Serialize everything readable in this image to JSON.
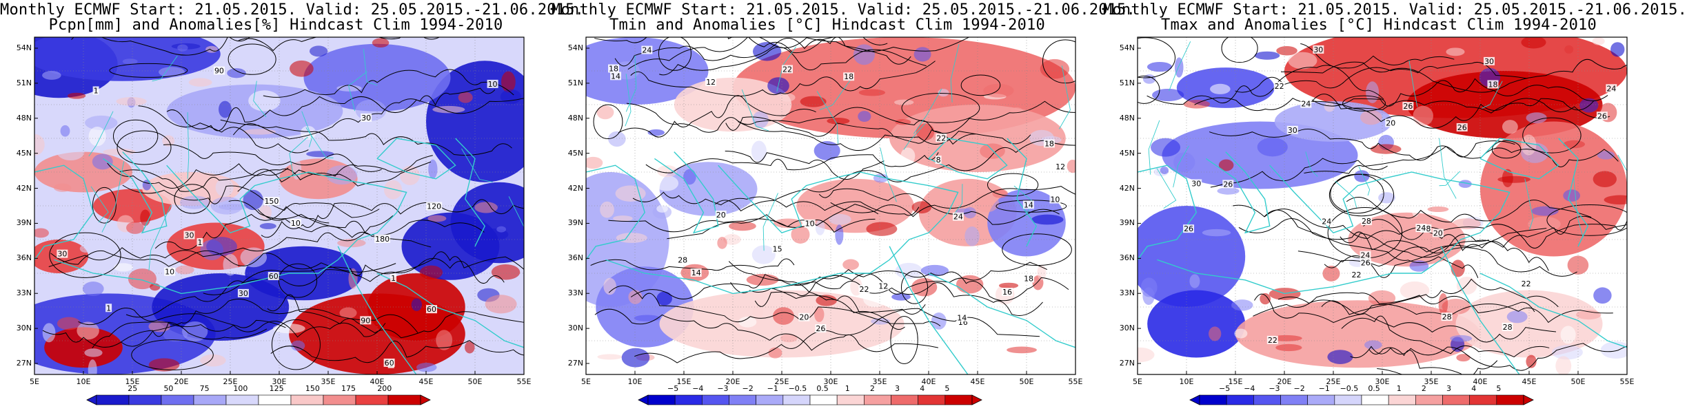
{
  "panels": [
    {
      "title_line1": "Monthly ECMWF Start: 21.05.2015. Valid: 25.05.2015.-21.06.2015.",
      "title_line2": "Pcpn[mm] and Anomalies[%] Hindcast Clim 1994-2010",
      "variable": "precipitation",
      "colorbar": {
        "labels": [
          "25",
          "50",
          "75",
          "100",
          "125",
          "150",
          "175",
          "200"
        ],
        "colors": [
          "#1a1acc",
          "#3a3ae0",
          "#6f6ff0",
          "#a8a8f7",
          "#d8d8fb",
          "#ffffff",
          "#f9c8c8",
          "#f28e8e",
          "#e94040",
          "#cc0000"
        ]
      },
      "contour_labels": [
        "30",
        "10",
        "60",
        "90",
        "90",
        "120",
        "150",
        "180",
        "60",
        "30",
        "10",
        "1",
        "1",
        "1",
        "1",
        "1",
        "30",
        "60",
        "10",
        "30"
      ]
    },
    {
      "title_line1": "Monthly ECMWF Start: 21.05.2015. Valid: 25.05.2015.-21.06.2015.",
      "title_line2": "Tmin and Anomalies [°C] Hindcast Clim 1994-2010",
      "variable": "tmin",
      "colorbar": {
        "labels": [
          "−5",
          "−4",
          "−3",
          "−2",
          "−1",
          "−0.5",
          "0.5",
          "1",
          "2",
          "3",
          "4",
          "5"
        ],
        "colors": [
          "#0000cc",
          "#2a2ae6",
          "#5555f0",
          "#8080f5",
          "#aaaaf8",
          "#d5d5fb",
          "#ffffff",
          "#fbd5d5",
          "#f5a0a0",
          "#ee6b6b",
          "#e23434",
          "#cc0000"
        ]
      },
      "contour_labels": [
        "12",
        "15",
        "16",
        "18",
        "14",
        "10",
        "8",
        "16",
        "12",
        "14",
        "18",
        "22",
        "20",
        "18",
        "14",
        "12",
        "10",
        "14",
        "24",
        "26",
        "28",
        "20",
        "22",
        "18",
        "22",
        "24"
      ]
    },
    {
      "title_line1": "Monthly ECMWF Start: 21.05.2015. Valid: 25.05.2015.-21.06.2015.",
      "title_line2": "Tmax and Anomalies [°C] Hindcast Clim 1994-2010",
      "variable": "tmax",
      "colorbar": {
        "labels": [
          "−5",
          "−4",
          "−3",
          "−2",
          "−1",
          "−0.5",
          "0.5",
          "1",
          "2",
          "3",
          "4",
          "5"
        ],
        "colors": [
          "#0000cc",
          "#2a2ae6",
          "#5555f0",
          "#8080f5",
          "#aaaaf8",
          "#d5d5fb",
          "#ffffff",
          "#fbd5d5",
          "#f5a0a0",
          "#ee6b6b",
          "#e23434",
          "#cc0000"
        ]
      },
      "contour_labels": [
        "24",
        "26",
        "28",
        "30",
        "22",
        "20",
        "18",
        "24",
        "26",
        "28",
        "30",
        "22",
        "24",
        "26",
        "20",
        "22",
        "24",
        "26",
        "28",
        "30",
        "26",
        "22",
        "24",
        "28",
        "30",
        "26"
      ]
    }
  ],
  "axes": {
    "lat_labels": [
      "54N",
      "51N",
      "48N",
      "45N",
      "42N",
      "39N",
      "36N",
      "33N",
      "30N",
      "27N"
    ],
    "lon_labels": [
      "5E",
      "10E",
      "15E",
      "20E",
      "25E",
      "30E",
      "35E",
      "40E",
      "45E",
      "50E",
      "55E"
    ]
  },
  "colors": {
    "coastline": "#33cccc",
    "contour": "#000000",
    "grid": "#888888"
  }
}
